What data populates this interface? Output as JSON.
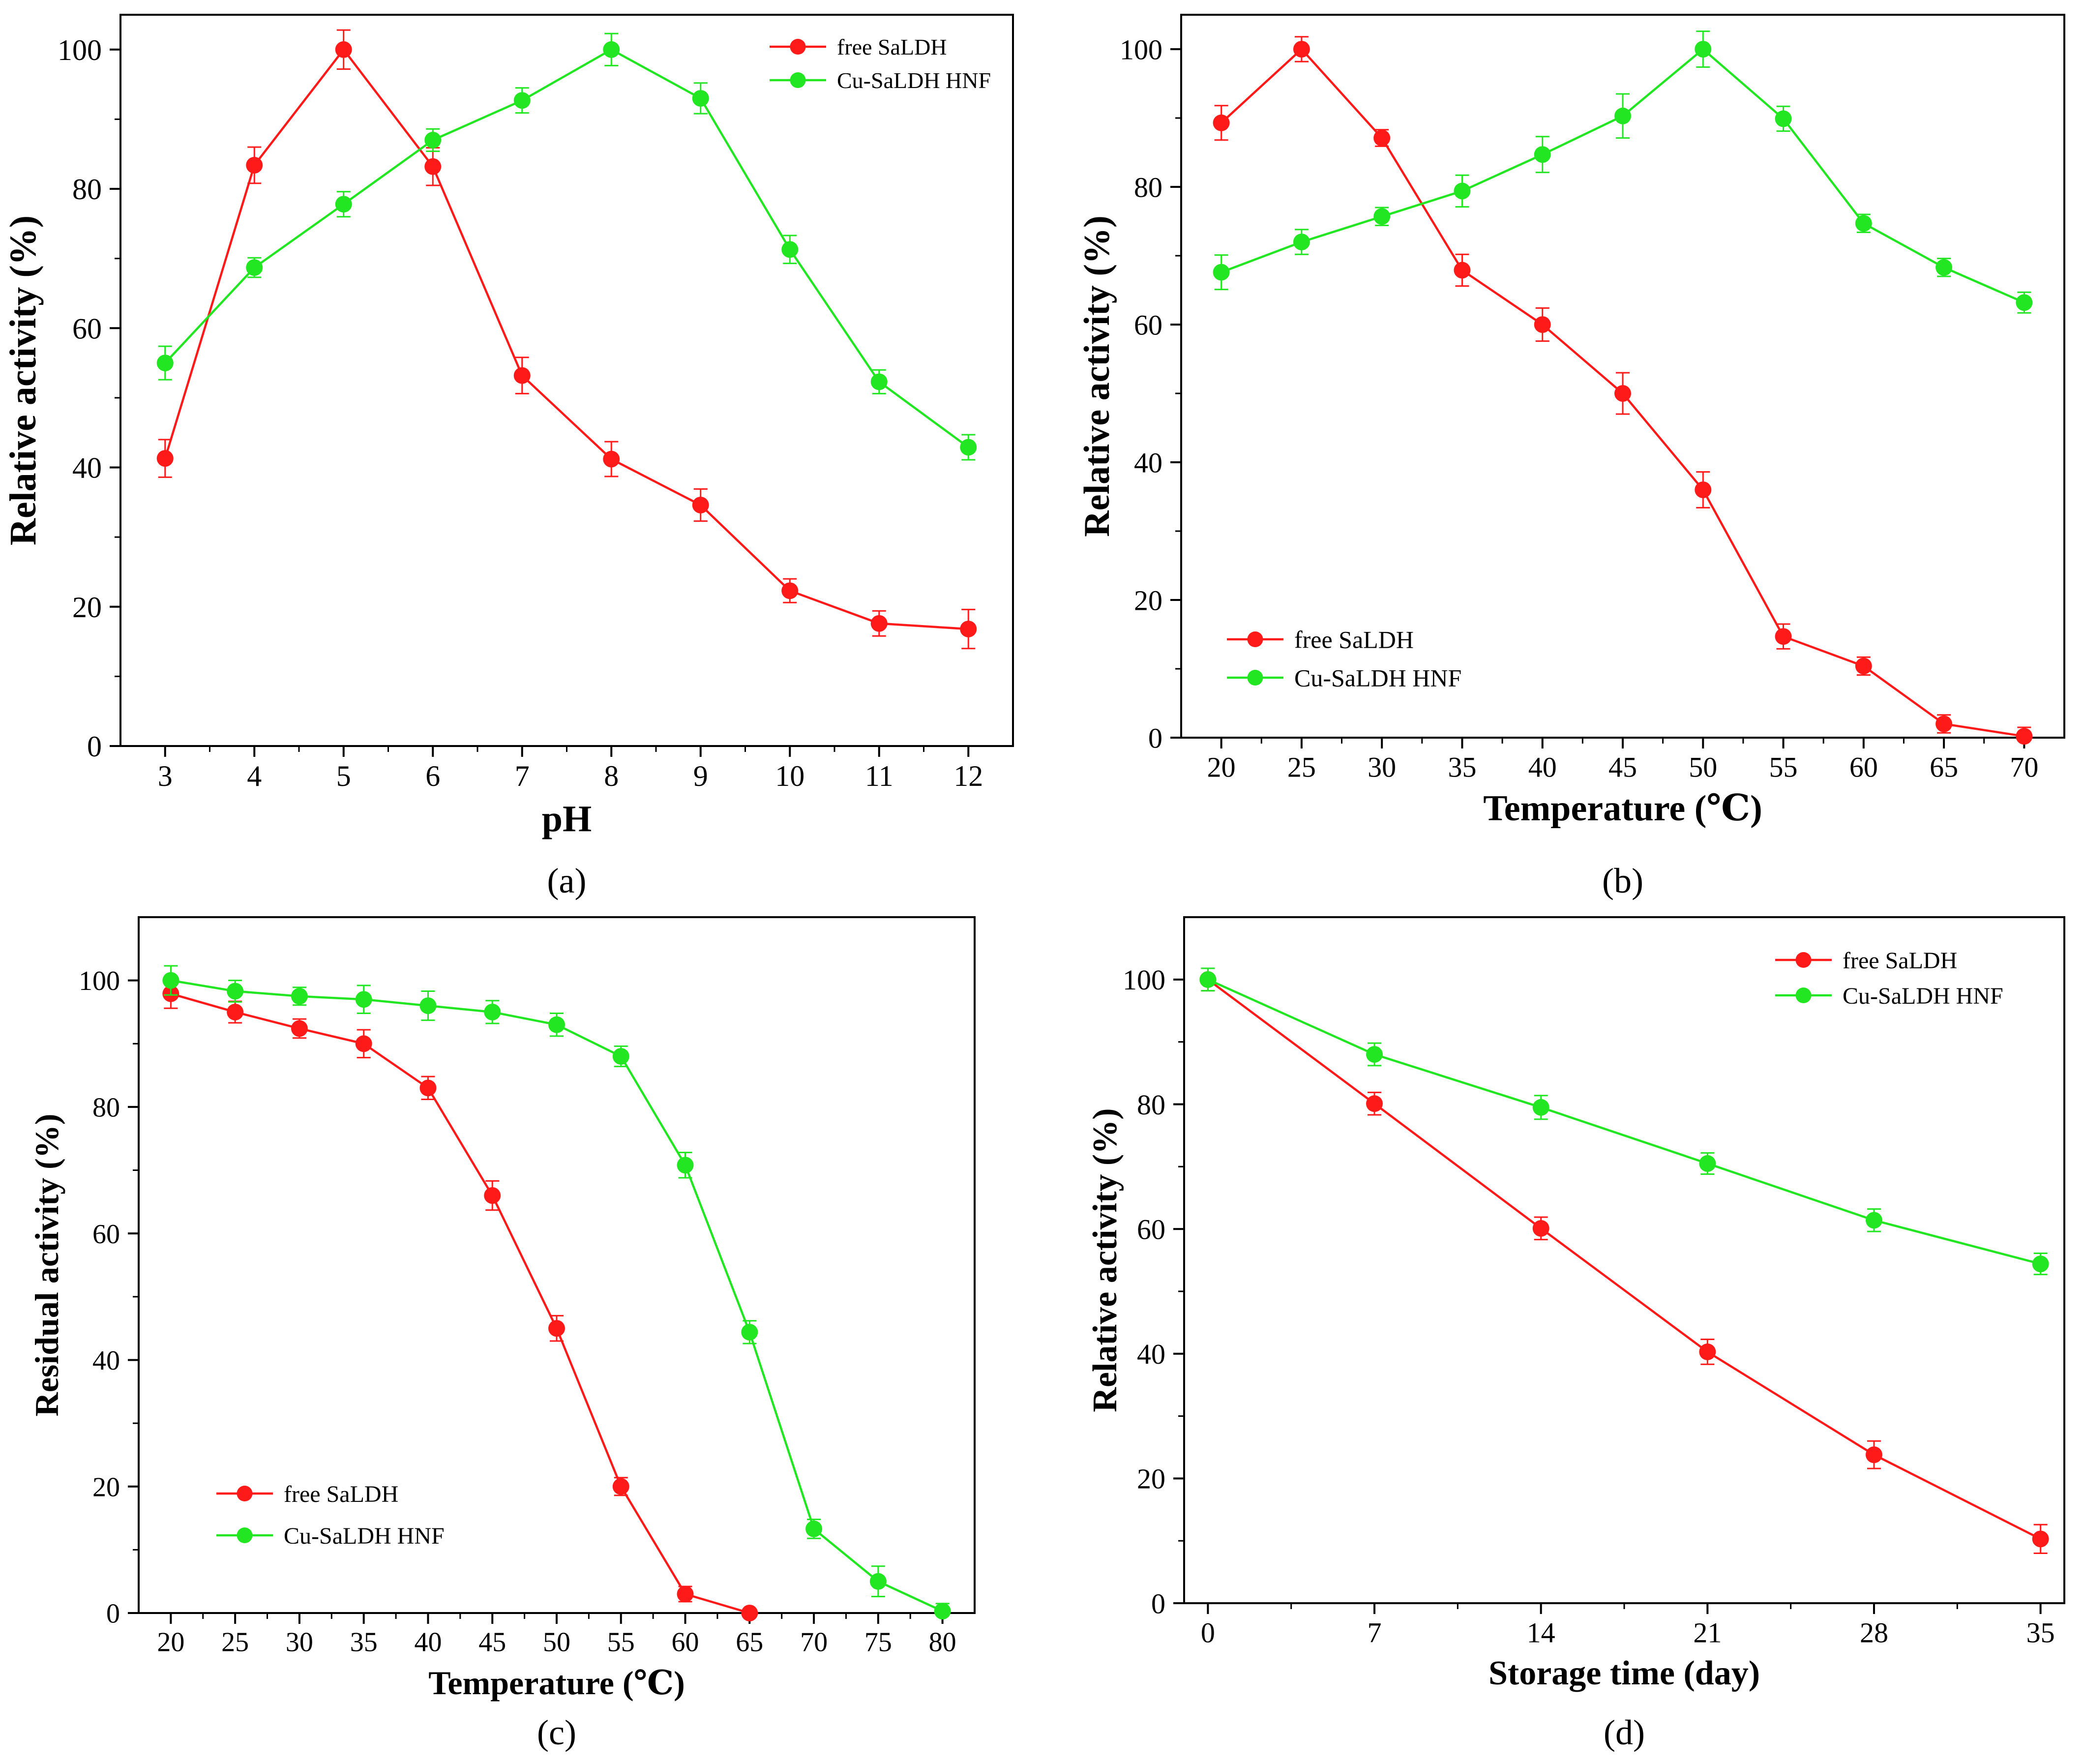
{
  "colors": {
    "free": "#ff1a1a",
    "hnf": "#22e622",
    "axis": "#000000"
  },
  "chart_data": [
    {
      "panel": "a",
      "type": "line",
      "caption": "(a)",
      "xlabel": "pH",
      "ylabel": "Relative activity (%)",
      "xlim": [
        2.5,
        12.5
      ],
      "ylim": [
        0,
        105
      ],
      "xticks": [
        3,
        4,
        5,
        6,
        7,
        8,
        9,
        10,
        11,
        12
      ],
      "xtick_labels": [
        "3",
        "4",
        "5",
        "6",
        "7",
        "8",
        "9",
        "10",
        "11",
        "12"
      ],
      "yticks": [
        0,
        20,
        40,
        60,
        80,
        100
      ],
      "ytick_labels": [
        "0",
        "20",
        "40",
        "60",
        "80",
        "100"
      ],
      "legend": "top-right",
      "series": [
        {
          "name": "free SaLDH",
          "color": "#ff1a1a",
          "x": [
            3,
            4,
            5,
            6,
            7,
            8,
            9,
            10,
            11,
            12
          ],
          "y": [
            41.3,
            83.4,
            100,
            83.2,
            53.2,
            41.2,
            34.6,
            22.3,
            17.6,
            16.8
          ],
          "err": [
            2.7,
            2.6,
            2.8,
            2.7,
            2.6,
            2.5,
            2.3,
            1.7,
            1.8,
            2.8
          ]
        },
        {
          "name": "Cu-SaLDH HNF",
          "color": "#22e622",
          "x": [
            3,
            4,
            5,
            6,
            7,
            8,
            9,
            10,
            11,
            12
          ],
          "y": [
            55.0,
            68.7,
            77.8,
            87.0,
            92.7,
            100,
            93.0,
            71.3,
            52.3,
            42.9
          ],
          "err": [
            2.4,
            1.4,
            1.8,
            1.6,
            1.8,
            2.3,
            2.2,
            2.0,
            1.7,
            1.8
          ]
        }
      ]
    },
    {
      "panel": "b",
      "type": "line",
      "caption": "(b)",
      "xlabel": "Temperature (℃)",
      "ylabel": "Relative activity (%)",
      "xlim": [
        17.5,
        72.5
      ],
      "ylim": [
        0,
        105
      ],
      "xticks": [
        20,
        25,
        30,
        35,
        40,
        45,
        50,
        55,
        60,
        65,
        70
      ],
      "xtick_labels": [
        "20",
        "25",
        "30",
        "35",
        "40",
        "45",
        "50",
        "55",
        "60",
        "65",
        "70"
      ],
      "yticks": [
        0,
        20,
        40,
        60,
        80,
        100
      ],
      "ytick_labels": [
        "0",
        "20",
        "40",
        "60",
        "80",
        "100"
      ],
      "legend": "lower-left",
      "series": [
        {
          "name": "free SaLDH",
          "color": "#ff1a1a",
          "x": [
            20,
            25,
            30,
            35,
            40,
            45,
            50,
            55,
            60,
            65,
            70
          ],
          "y": [
            89.3,
            100,
            87.1,
            67.9,
            60.0,
            50.0,
            36.0,
            14.7,
            10.4,
            2.0,
            0.2
          ],
          "err": [
            2.5,
            1.8,
            1.2,
            2.3,
            2.4,
            3.0,
            2.6,
            1.8,
            1.3,
            1.3,
            1.3
          ]
        },
        {
          "name": "Cu-SaLDH HNF",
          "color": "#22e622",
          "x": [
            20,
            25,
            30,
            35,
            40,
            45,
            50,
            55,
            60,
            65,
            70
          ],
          "y": [
            67.6,
            72.0,
            75.7,
            79.4,
            84.7,
            90.3,
            100,
            89.9,
            74.7,
            68.3,
            63.2
          ],
          "err": [
            2.5,
            1.8,
            1.3,
            2.3,
            2.6,
            3.2,
            2.6,
            1.8,
            1.3,
            1.3,
            1.5
          ]
        }
      ]
    },
    {
      "panel": "c",
      "type": "line",
      "caption": "(c)",
      "xlabel": "Temperature (℃)",
      "ylabel": "Residual activity (%)",
      "xlim": [
        17.5,
        82.5
      ],
      "ylim": [
        0,
        110
      ],
      "xticks": [
        20,
        25,
        30,
        35,
        40,
        45,
        50,
        55,
        60,
        65,
        70,
        75,
        80
      ],
      "xtick_labels": [
        "20",
        "25",
        "30",
        "35",
        "40",
        "45",
        "50",
        "55",
        "60",
        "65",
        "70",
        "75",
        "80"
      ],
      "yticks": [
        0,
        20,
        40,
        60,
        80,
        100
      ],
      "ytick_labels": [
        "0",
        "20",
        "40",
        "60",
        "80",
        "100"
      ],
      "legend": "lower-left",
      "series": [
        {
          "name": "free SaLDH",
          "color": "#ff1a1a",
          "x": [
            20,
            25,
            30,
            35,
            40,
            45,
            50,
            55,
            60,
            65
          ],
          "y": [
            97.9,
            95.0,
            92.4,
            90.0,
            83.0,
            66.0,
            45.0,
            20.0,
            3.0,
            0.0
          ],
          "err": [
            2.3,
            1.7,
            1.5,
            2.2,
            1.8,
            2.3,
            2.0,
            1.4,
            1.2,
            0.5
          ]
        },
        {
          "name": "Cu-SaLDH HNF",
          "color": "#22e622",
          "x": [
            20,
            25,
            30,
            35,
            40,
            45,
            50,
            55,
            60,
            65,
            70,
            75,
            80
          ],
          "y": [
            100,
            98.3,
            97.5,
            97.0,
            96.0,
            95.0,
            93.0,
            88.0,
            70.8,
            44.4,
            13.3,
            5.0,
            0.3
          ],
          "err": [
            2.3,
            1.7,
            1.4,
            2.2,
            2.3,
            1.8,
            1.8,
            1.6,
            2.0,
            1.8,
            1.5,
            2.4,
            1.2
          ]
        }
      ]
    },
    {
      "panel": "d",
      "type": "line",
      "caption": "(d)",
      "xlabel": "Storage time (day)",
      "ylabel": "Relative activity (%)",
      "xlim": [
        -1,
        36
      ],
      "ylim": [
        0,
        110
      ],
      "xticks": [
        0,
        7,
        14,
        21,
        28,
        35
      ],
      "xtick_labels": [
        "0",
        "7",
        "14",
        "21",
        "28",
        "35"
      ],
      "yticks": [
        0,
        20,
        40,
        60,
        80,
        100
      ],
      "ytick_labels": [
        "0",
        "20",
        "40",
        "60",
        "80",
        "100"
      ],
      "legend": "top-right",
      "series": [
        {
          "name": "free SaLDH",
          "color": "#ff1a1a",
          "x": [
            0,
            7,
            14,
            21,
            28,
            35
          ],
          "y": [
            100,
            80.1,
            60.1,
            40.3,
            23.8,
            10.3
          ],
          "err": [
            1.8,
            1.8,
            1.8,
            2.0,
            2.2,
            2.3
          ]
        },
        {
          "name": "Cu-SaLDH HNF",
          "color": "#22e622",
          "x": [
            0,
            7,
            14,
            21,
            28,
            35
          ],
          "y": [
            100,
            88.0,
            79.5,
            70.5,
            61.4,
            54.4
          ],
          "err": [
            1.8,
            1.8,
            1.9,
            1.7,
            1.8,
            1.7
          ]
        }
      ]
    }
  ]
}
